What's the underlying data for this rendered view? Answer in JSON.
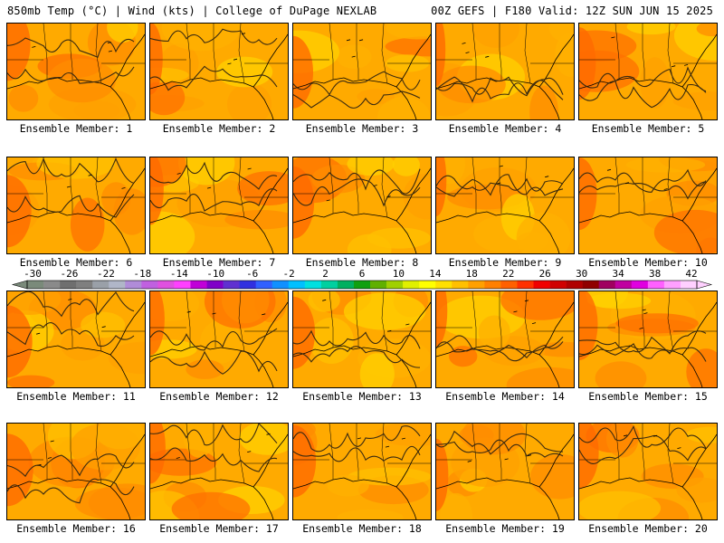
{
  "header": {
    "left_title": "850mb Temp (°C) | Wind (kts) | College of DuPage NEXLAB",
    "right_title": "00Z GEFS | F180 Valid: 12Z SUN JUN 15 2025"
  },
  "panels": [
    {
      "label": "Ensemble Member: 1"
    },
    {
      "label": "Ensemble Member: 2"
    },
    {
      "label": "Ensemble Member: 3"
    },
    {
      "label": "Ensemble Member: 4"
    },
    {
      "label": "Ensemble Member: 5"
    },
    {
      "label": "Ensemble Member: 6"
    },
    {
      "label": "Ensemble Member: 7"
    },
    {
      "label": "Ensemble Member: 8"
    },
    {
      "label": "Ensemble Member: 9"
    },
    {
      "label": "Ensemble Member: 10"
    },
    {
      "label": "Ensemble Member: 11"
    },
    {
      "label": "Ensemble Member: 12"
    },
    {
      "label": "Ensemble Member: 13"
    },
    {
      "label": "Ensemble Member: 14"
    },
    {
      "label": "Ensemble Member: 15"
    },
    {
      "label": "Ensemble Member: 16"
    },
    {
      "label": "Ensemble Member: 17"
    },
    {
      "label": "Ensemble Member: 18"
    },
    {
      "label": "Ensemble Member: 19"
    },
    {
      "label": "Ensemble Member: 20"
    }
  ],
  "colorbar": {
    "labels": [
      "-30",
      "-26",
      "-22",
      "-18",
      "-14",
      "-10",
      "-6",
      "-2",
      "2",
      "6",
      "10",
      "14",
      "18",
      "22",
      "26",
      "30",
      "34",
      "38",
      "42"
    ],
    "colors": [
      "#7a8a7a",
      "#8a8a8a",
      "#6f6f6f",
      "#7f7f7f",
      "#9aa0a8",
      "#b0b6c8",
      "#b08cd8",
      "#c060e0",
      "#e050e0",
      "#ff40ff",
      "#c000d8",
      "#8000c8",
      "#6030d0",
      "#3030e0",
      "#3060ff",
      "#1090ff",
      "#00c0ff",
      "#00e0e0",
      "#00d0a0",
      "#00b060",
      "#10a010",
      "#60b000",
      "#a0d000",
      "#e0f000",
      "#ffff00",
      "#ffe000",
      "#ffc000",
      "#ffa000",
      "#ff8000",
      "#ff6000",
      "#ff3000",
      "#f00000",
      "#d00000",
      "#b00000",
      "#900000",
      "#a00060",
      "#c000a0",
      "#e000e0",
      "#ff60ff",
      "#ffa0ff",
      "#ffd0ff"
    ]
  }
}
